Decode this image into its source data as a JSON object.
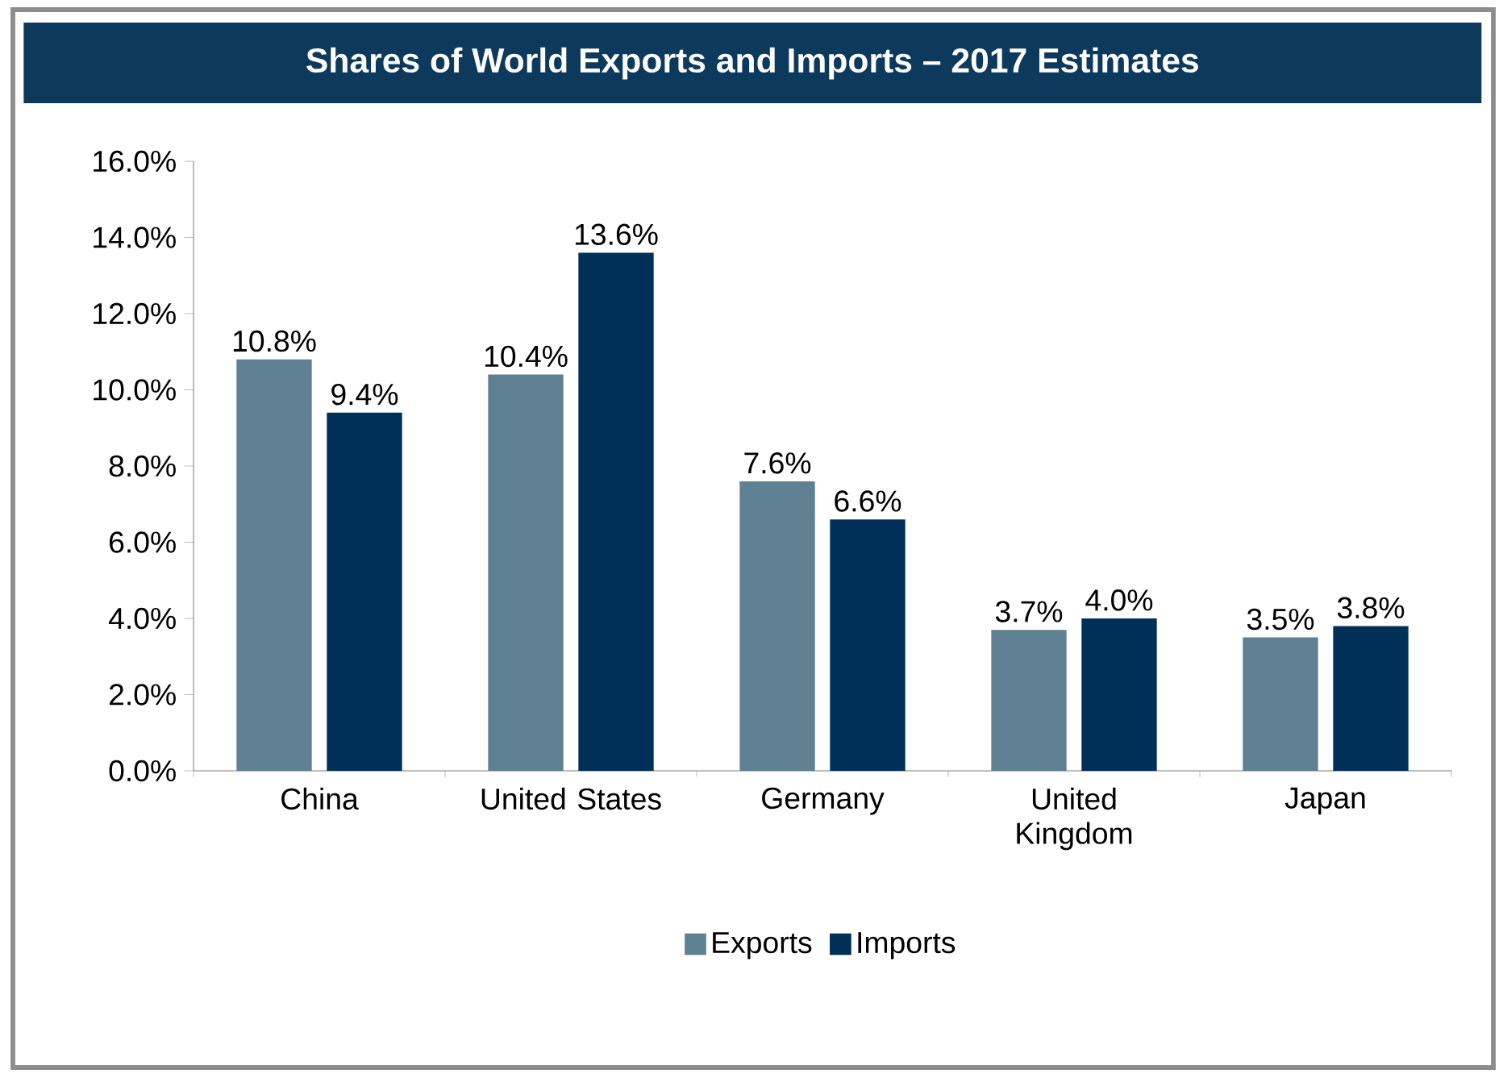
{
  "chart_data": {
    "type": "bar",
    "title": "Shares of World Exports and Imports – 2017 Estimates",
    "categories": [
      "China",
      "United States",
      "Germany",
      "United Kingdom",
      "Japan"
    ],
    "series": [
      {
        "name": "Exports",
        "color": "#5f7f93",
        "values": [
          10.8,
          10.4,
          7.6,
          3.7,
          3.5
        ],
        "value_labels": [
          "10.8%",
          "10.4%",
          "7.6%",
          "3.7%",
          "3.5%"
        ]
      },
      {
        "name": "Imports",
        "color": "#003057",
        "values": [
          9.4,
          13.6,
          6.6,
          4.0,
          3.8
        ],
        "value_labels": [
          "9.4%",
          "13.6%",
          "6.6%",
          "4.0%",
          "3.8%"
        ]
      }
    ],
    "ylim": [
      0,
      16
    ],
    "yticks": [
      {
        "value": 0,
        "label": "0.0%"
      },
      {
        "value": 2,
        "label": "2.0%"
      },
      {
        "value": 4,
        "label": "4.0%"
      },
      {
        "value": 6,
        "label": "6.0%"
      },
      {
        "value": 8,
        "label": "8.0%"
      },
      {
        "value": 10,
        "label": "10.0%"
      },
      {
        "value": 12,
        "label": "12.0%"
      },
      {
        "value": 14,
        "label": "14.0%"
      },
      {
        "value": 16,
        "label": "16.0%"
      }
    ],
    "legend": "bottom"
  }
}
